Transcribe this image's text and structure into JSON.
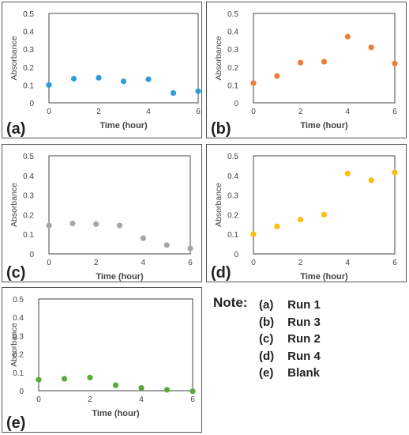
{
  "chart_data": [
    {
      "type": "scatter",
      "panel_label": "(a)",
      "xlabel": "Time (hour)",
      "ylabel": "Absorbance",
      "xlim": [
        0,
        6
      ],
      "ylim": [
        0,
        0.5
      ],
      "xticks": [
        "0",
        "2",
        "4",
        "6"
      ],
      "yticks": [
        "0",
        "0.1",
        "0.2",
        "0.3",
        "0.4",
        "0.5"
      ],
      "color": "#2e9bd6",
      "x": [
        0,
        1,
        2,
        3,
        4,
        5,
        6
      ],
      "y": [
        0.1,
        0.135,
        0.14,
        0.12,
        0.132,
        0.055,
        0.065
      ]
    },
    {
      "type": "scatter",
      "panel_label": "(b)",
      "xlabel": "Time (hour)",
      "ylabel": "Absorbance",
      "xlim": [
        0,
        6
      ],
      "ylim": [
        0,
        0.5
      ],
      "xticks": [
        "0",
        "2",
        "4",
        "6"
      ],
      "yticks": [
        "0",
        "0.1",
        "0.2",
        "0.3",
        "0.4",
        "0.5"
      ],
      "color": "#ee7d3a",
      "x": [
        0,
        1,
        2,
        3,
        4,
        5,
        6
      ],
      "y": [
        0.11,
        0.15,
        0.225,
        0.23,
        0.37,
        0.31,
        0.22
      ]
    },
    {
      "type": "scatter",
      "panel_label": "(c)",
      "xlabel": "Time (hour)",
      "ylabel": "Absorbance",
      "xlim": [
        0,
        6
      ],
      "ylim": [
        0,
        0.5
      ],
      "xticks": [
        "0",
        "2",
        "4",
        "6"
      ],
      "yticks": [
        "0",
        "0.1",
        "0.2",
        "0.3",
        "0.4",
        "0.5"
      ],
      "color": "#a6a6a6",
      "x": [
        0,
        1,
        2,
        3,
        4,
        5,
        6
      ],
      "y": [
        0.145,
        0.155,
        0.152,
        0.145,
        0.08,
        0.045,
        0.028
      ]
    },
    {
      "type": "scatter",
      "panel_label": "(d)",
      "xlabel": "Time (hour)",
      "ylabel": "Absorbance",
      "xlim": [
        0,
        6
      ],
      "ylim": [
        0,
        0.5
      ],
      "xticks": [
        "0",
        "2",
        "4",
        "6"
      ],
      "yticks": [
        "0",
        "0.1",
        "0.2",
        "0.3",
        "0.4",
        "0.5"
      ],
      "color": "#fcbf0d",
      "x": [
        0,
        1,
        2,
        3,
        4,
        5,
        6
      ],
      "y": [
        0.1,
        0.14,
        0.175,
        0.2,
        0.41,
        0.375,
        0.415
      ]
    },
    {
      "type": "scatter",
      "panel_label": "(e)",
      "xlabel": "Time (hour)",
      "ylabel": "Absorbance",
      "xlim": [
        0,
        6
      ],
      "ylim": [
        0,
        0.5
      ],
      "xticks": [
        "0",
        "2",
        "4",
        "6"
      ],
      "yticks": [
        "0",
        "0.1",
        "0.2",
        "0.3",
        "0.4",
        "0.5"
      ],
      "color": "#5aa93b",
      "x": [
        0,
        1,
        2,
        3,
        4,
        5,
        6
      ],
      "y": [
        0.06,
        0.065,
        0.072,
        0.03,
        0.015,
        0.005,
        -0.003
      ]
    }
  ],
  "note": {
    "title": "Note:",
    "items": [
      {
        "label": "(a)",
        "text": "Run 1"
      },
      {
        "label": "(b)",
        "text": "Run 3"
      },
      {
        "label": "(c)",
        "text": "Run 2"
      },
      {
        "label": "(d)",
        "text": "Run 4"
      },
      {
        "label": "(e)",
        "text": "Blank"
      }
    ]
  }
}
